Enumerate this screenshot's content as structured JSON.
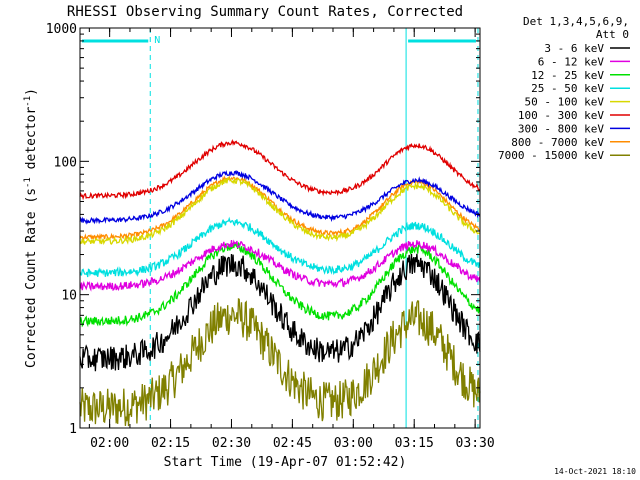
{
  "chart_data": {
    "type": "line",
    "title": "RHESSI Observing Summary Count Rates, Corrected",
    "xlabel": "Start Time (19-Apr-07 01:52:42)",
    "ylabel_main": "Corrected Count Rate (s",
    "ylabel_sup1": "-1",
    "ylabel_mid": " detector",
    "ylabel_sup2": "-1",
    "ylabel_end": ")",
    "yscale": "log",
    "ylim": [
      1,
      1000
    ],
    "y_ticks": [
      {
        "value": 1,
        "label": "1"
      },
      {
        "value": 10,
        "label": "10"
      },
      {
        "value": 100,
        "label": "100"
      },
      {
        "value": 1000,
        "label": "1000"
      }
    ],
    "xlim_minutes": [
      0,
      98.5
    ],
    "x_ticks": [
      {
        "minutes": 7.3,
        "label": "02:00"
      },
      {
        "minutes": 22.3,
        "label": "02:15"
      },
      {
        "minutes": 37.3,
        "label": "02:30"
      },
      {
        "minutes": 52.3,
        "label": "02:45"
      },
      {
        "minutes": 67.3,
        "label": "03:00"
      },
      {
        "minutes": 82.3,
        "label": "03:15"
      },
      {
        "minutes": 97.3,
        "label": "03:30"
      }
    ],
    "legend_header": [
      "Det 1,3,4,5,6,9,",
      "Att 0"
    ],
    "legend_position": "top-right outside",
    "night_intervals_minutes": [
      [
        0,
        17.3
      ],
      [
        80.3,
        98.0
      ]
    ],
    "night_label": "N",
    "timestamp": "14-Oct-2021 18:10",
    "series": [
      {
        "name": "3 - 6 keV",
        "color": "#000000",
        "baseline": 3.3,
        "peak1": 17,
        "peak2": 17,
        "noise": 0.22
      },
      {
        "name": "6 - 12 keV",
        "color": "#e000e0",
        "baseline": 11.5,
        "peak1": 24,
        "peak2": 24,
        "noise": 0.07
      },
      {
        "name": "12 - 25 keV",
        "color": "#00e000",
        "baseline": 6.3,
        "peak1": 23,
        "peak2": 22,
        "noise": 0.08
      },
      {
        "name": "25 - 50 keV",
        "color": "#00e0e0",
        "baseline": 14.5,
        "peak1": 35,
        "peak2": 33,
        "noise": 0.07
      },
      {
        "name": "50 - 100 keV",
        "color": "#d8d800",
        "baseline": 25,
        "peak1": 72,
        "peak2": 65,
        "noise": 0.05
      },
      {
        "name": "100 - 300 keV",
        "color": "#e00000",
        "baseline": 55,
        "peak1": 138,
        "peak2": 132,
        "noise": 0.04
      },
      {
        "name": "300 - 800 keV",
        "color": "#0000e0",
        "baseline": 36,
        "peak1": 82,
        "peak2": 72,
        "noise": 0.04
      },
      {
        "name": "800 - 7000 keV",
        "color": "#ff8c00",
        "baseline": 27,
        "peak1": 75,
        "peak2": 70,
        "noise": 0.04
      },
      {
        "name": "7000 - 15000 keV",
        "color": "#808000",
        "baseline": 1.4,
        "peak1": 7,
        "peak2": 6.5,
        "noise": 0.35
      }
    ]
  }
}
